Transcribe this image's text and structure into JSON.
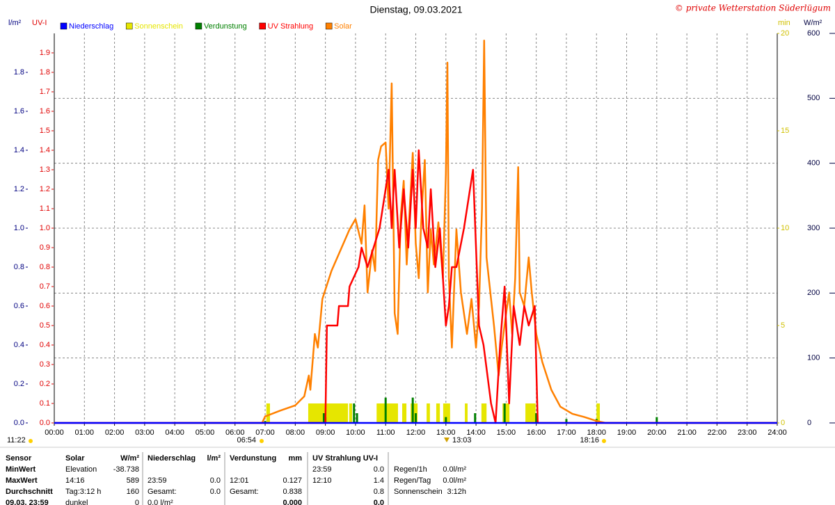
{
  "chart_data": {
    "type": "line",
    "title": "Dienstag, 09.03.2021",
    "copyright": "© private Wetterstation Süderlügum",
    "y_label": "l/m²",
    "y2_label": "UV-I",
    "y3_label": "min",
    "y4_label": "W/m²",
    "xlim": [
      0,
      24
    ],
    "xticks": [
      {
        "value": 0,
        "label": "00:00"
      },
      {
        "value": 1,
        "label": "01:00"
      },
      {
        "value": 2,
        "label": "02:00"
      },
      {
        "value": 3,
        "label": "03:00"
      },
      {
        "value": 4,
        "label": "04:00"
      },
      {
        "value": 5,
        "label": "05:00"
      },
      {
        "value": 6,
        "label": "06:00"
      },
      {
        "value": 7,
        "label": "07:00"
      },
      {
        "value": 8,
        "label": "08:00"
      },
      {
        "value": 9,
        "label": "09:00"
      },
      {
        "value": 10,
        "label": "10:00"
      },
      {
        "value": 11,
        "label": "11:00"
      },
      {
        "value": 12,
        "label": "12:00"
      },
      {
        "value": 13,
        "label": "13:00"
      },
      {
        "value": 14,
        "label": "14:00"
      },
      {
        "value": 15,
        "label": "15:00"
      },
      {
        "value": 16,
        "label": "16:00"
      },
      {
        "value": 17,
        "label": "17:00"
      },
      {
        "value": 18,
        "label": "18:00"
      },
      {
        "value": 19,
        "label": "19:00"
      },
      {
        "value": 20,
        "label": "20:00"
      },
      {
        "value": 21,
        "label": "21:00"
      },
      {
        "value": 22,
        "label": "22:00"
      },
      {
        "value": 23,
        "label": "23:00"
      },
      {
        "value": 24,
        "label": "24:00"
      }
    ],
    "ylim": [
      0,
      2
    ],
    "yticks": [
      {
        "value": 0,
        "label": "0.0"
      },
      0.2,
      0.4,
      0.6,
      0.8,
      {
        "value": 1,
        "label": "1.0"
      },
      1.2,
      1.4,
      1.6,
      1.8
    ],
    "y2lim": [
      0,
      2
    ],
    "y2ticks": [
      {
        "value": 0,
        "label": "0.0"
      },
      0.1,
      0.2,
      0.3,
      0.4,
      0.5,
      0.6,
      0.7,
      0.8,
      0.9,
      {
        "value": 1,
        "label": "1.0"
      },
      1.1,
      1.2,
      1.3,
      1.4,
      1.5,
      1.6,
      1.7,
      1.8,
      1.9
    ],
    "y3lim": [
      0,
      20
    ],
    "y3ticks": [
      0,
      5,
      10,
      15,
      20
    ],
    "y4lim": [
      0,
      600
    ],
    "y4ticks": [
      0,
      100,
      200,
      300,
      400,
      500,
      600
    ],
    "grid": true,
    "annotations": [
      "11:22",
      "06:54",
      "13:03",
      "18:16"
    ],
    "series": [
      {
        "name": "Niederschlag",
        "color": "#0000ff",
        "type": "line",
        "axis": "y",
        "x": [
          0,
          24
        ],
        "values": [
          0,
          0
        ]
      },
      {
        "name": "Sonnenschein",
        "color": "#e6e600",
        "type": "interval",
        "axis": "y3",
        "intervals": [
          [
            7.04,
            7.16
          ],
          [
            8.43,
            9.75
          ],
          [
            9.79,
            9.89
          ],
          [
            10.7,
            11.41
          ],
          [
            11.55,
            11.69
          ],
          [
            11.83,
            12.06
          ],
          [
            12.36,
            12.47
          ],
          [
            12.68,
            12.8
          ],
          [
            12.91,
            13.14
          ],
          [
            13.63,
            13.72
          ],
          [
            14.18,
            14.35
          ],
          [
            14.88,
            15.11
          ],
          [
            15.64,
            15.98
          ],
          [
            18.0,
            18.11
          ]
        ],
        "values": [
          1,
          1,
          1,
          1,
          1,
          1,
          1,
          1,
          1,
          1,
          1,
          1,
          1,
          1
        ]
      },
      {
        "name": "Verdunstung",
        "color": "#008000",
        "type": "spike",
        "axis": "y",
        "x": [
          7.0,
          8.95,
          9.0,
          9.95,
          10.05,
          11.0,
          11.9,
          12.0,
          13.0,
          13.97,
          14.95,
          16.0,
          17.0,
          18.0,
          20.0
        ],
        "values": [
          0.01,
          0.05,
          0.03,
          0.1,
          0.05,
          0.13,
          0.13,
          0.05,
          0.03,
          0.05,
          0.1,
          0.05,
          0.02,
          0.02,
          0.03
        ]
      },
      {
        "name": "UV Strahlung",
        "color": "#ff0000",
        "type": "line",
        "axis": "y2",
        "x": [
          0,
          9.0,
          9.05,
          9.4,
          9.45,
          9.75,
          9.8,
          10.1,
          10.2,
          10.4,
          10.6,
          10.8,
          11.0,
          11.1,
          11.2,
          11.3,
          11.45,
          11.6,
          11.75,
          11.9,
          12.0,
          12.1,
          12.25,
          12.4,
          12.5,
          12.65,
          12.8,
          13.0,
          13.1,
          13.2,
          13.35,
          13.6,
          13.9,
          14.1,
          14.25,
          14.5,
          14.65,
          14.8,
          14.95,
          15.1,
          15.25,
          15.45,
          15.6,
          15.75,
          15.95,
          16.05,
          24
        ],
        "values": [
          0,
          0,
          0.5,
          0.5,
          0.6,
          0.6,
          0.7,
          0.8,
          0.9,
          0.8,
          0.9,
          1.0,
          1.2,
          1.3,
          1.0,
          1.3,
          0.9,
          1.2,
          0.9,
          1.3,
          1.0,
          1.4,
          1.0,
          0.9,
          1.2,
          0.8,
          1.0,
          0.5,
          0.6,
          0.8,
          0.8,
          1.0,
          1.3,
          0.5,
          0.4,
          0.1,
          0.0,
          0.4,
          0.7,
          0.1,
          0.6,
          0.4,
          0.6,
          0.5,
          0.6,
          0.0,
          0
        ]
      },
      {
        "name": "Solar",
        "color": "#ff8000",
        "type": "line",
        "axis": "y4",
        "x": [
          3.9,
          6.9,
          7.0,
          7.5,
          8.0,
          8.3,
          8.45,
          8.5,
          8.65,
          8.75,
          8.9,
          9.2,
          9.5,
          9.8,
          10.0,
          10.2,
          10.3,
          10.4,
          10.55,
          10.65,
          10.75,
          10.85,
          11.0,
          11.1,
          11.2,
          11.3,
          11.4,
          11.5,
          11.6,
          11.7,
          11.8,
          11.9,
          12.0,
          12.1,
          12.2,
          12.3,
          12.4,
          12.5,
          12.6,
          12.75,
          12.9,
          13.0,
          13.05,
          13.1,
          13.2,
          13.35,
          13.5,
          13.7,
          13.85,
          14.0,
          14.1,
          14.2,
          14.27,
          14.35,
          14.5,
          14.6,
          14.75,
          14.85,
          15.0,
          15.1,
          15.2,
          15.3,
          15.4,
          15.45,
          15.6,
          15.75,
          15.85,
          16.0,
          16.2,
          16.5,
          16.8,
          17.2,
          17.6,
          18.0,
          18.3,
          24.0
        ],
        "values": [
          0,
          0,
          10,
          19,
          27,
          41,
          73,
          51,
          137,
          116,
          191,
          234,
          266,
          298,
          314,
          276,
          335,
          201,
          266,
          234,
          405,
          426,
          432,
          330,
          523,
          169,
          137,
          319,
          373,
          244,
          330,
          416,
          276,
          223,
          330,
          405,
          201,
          298,
          244,
          309,
          223,
          384,
          555,
          223,
          116,
          298,
          201,
          137,
          191,
          116,
          180,
          330,
          589,
          255,
          191,
          148,
          73,
          116,
          169,
          201,
          137,
          223,
          394,
          201,
          180,
          255,
          201,
          137,
          94,
          51,
          25,
          14,
          9,
          3,
          0,
          0
        ]
      }
    ]
  },
  "table": {
    "rows": [
      [
        "Sensor",
        "Solar",
        "W/m²",
        "Niederschlag",
        "l/m²",
        "Verdunstung",
        "mm",
        "UV Strahlung UV-I",
        null,
        null,
        null
      ],
      [
        "MinWert",
        "Elevation",
        "-38.738",
        null,
        null,
        null,
        null,
        "23:59",
        "0.0",
        "Regen/1h",
        "0.0l/m²"
      ],
      [
        "MaxWert",
        "14:16",
        "589",
        "23:59",
        "0.0",
        "12:01",
        "0.127",
        "12:10",
        "1.4",
        "Regen/Tag",
        "0.0l/m²"
      ],
      [
        "Durchschnitt",
        "Tag:3:12 h",
        "160",
        "Gesamt:",
        "0.0",
        "Gesamt:",
        "0.838",
        null,
        "0.8",
        "Sonnenschein",
        "3:12h"
      ],
      [
        "09.03. 23:59",
        "dunkel",
        "0",
        "0.0 l/m²",
        null,
        null,
        "0.000",
        null,
        "0.0",
        null,
        null
      ]
    ]
  }
}
